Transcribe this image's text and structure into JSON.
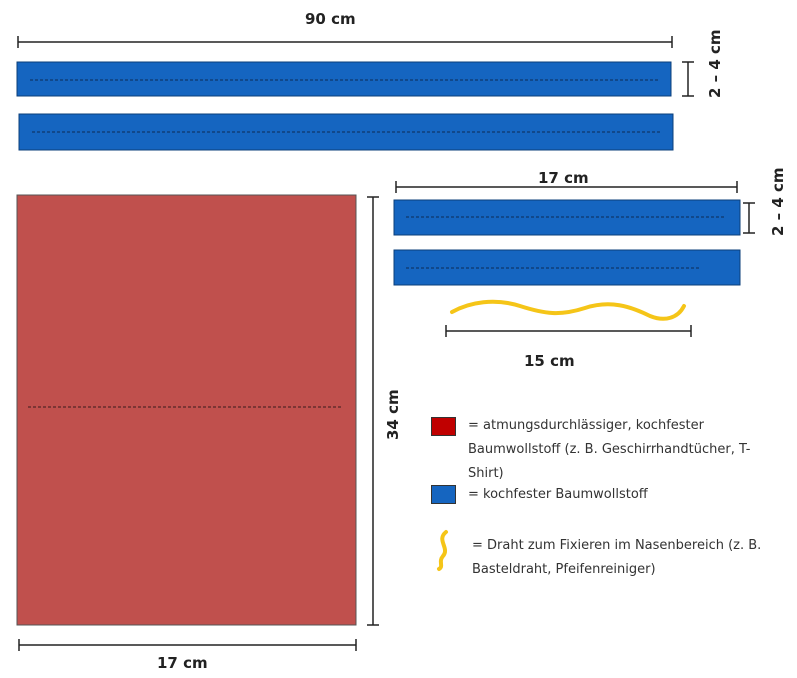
{
  "colors": {
    "band": "#1565c0",
    "band_border": "#0b3f7a",
    "fabric": "#c0504d",
    "legend_red": "#c00000",
    "legend_blue": "#1565c0",
    "wire": "#f5c518",
    "line": "#222222"
  },
  "long_bands": {
    "width_label": "90 cm",
    "height_label": "2 – 4 cm"
  },
  "short_bands": {
    "width_label": "17 cm",
    "height_label": "2 – 4 cm"
  },
  "wire": {
    "length_label": "15 cm"
  },
  "fabric_panel": {
    "width_label": "17 cm",
    "height_label": "34 cm"
  },
  "legend": {
    "items": [
      {
        "icon": "red-square",
        "text": "= atmungsdurchlässiger, kochfester Baumwollstoff (z. B. Geschirrhandtücher, T-Shirt)"
      },
      {
        "icon": "blue-square",
        "text": "= kochfester Baumwollstoff"
      },
      {
        "icon": "yellow-wire",
        "text": "= Draht zum Fixieren im Nasenbereich (z. B. Basteldraht, Pfeifenreiniger)"
      }
    ]
  }
}
